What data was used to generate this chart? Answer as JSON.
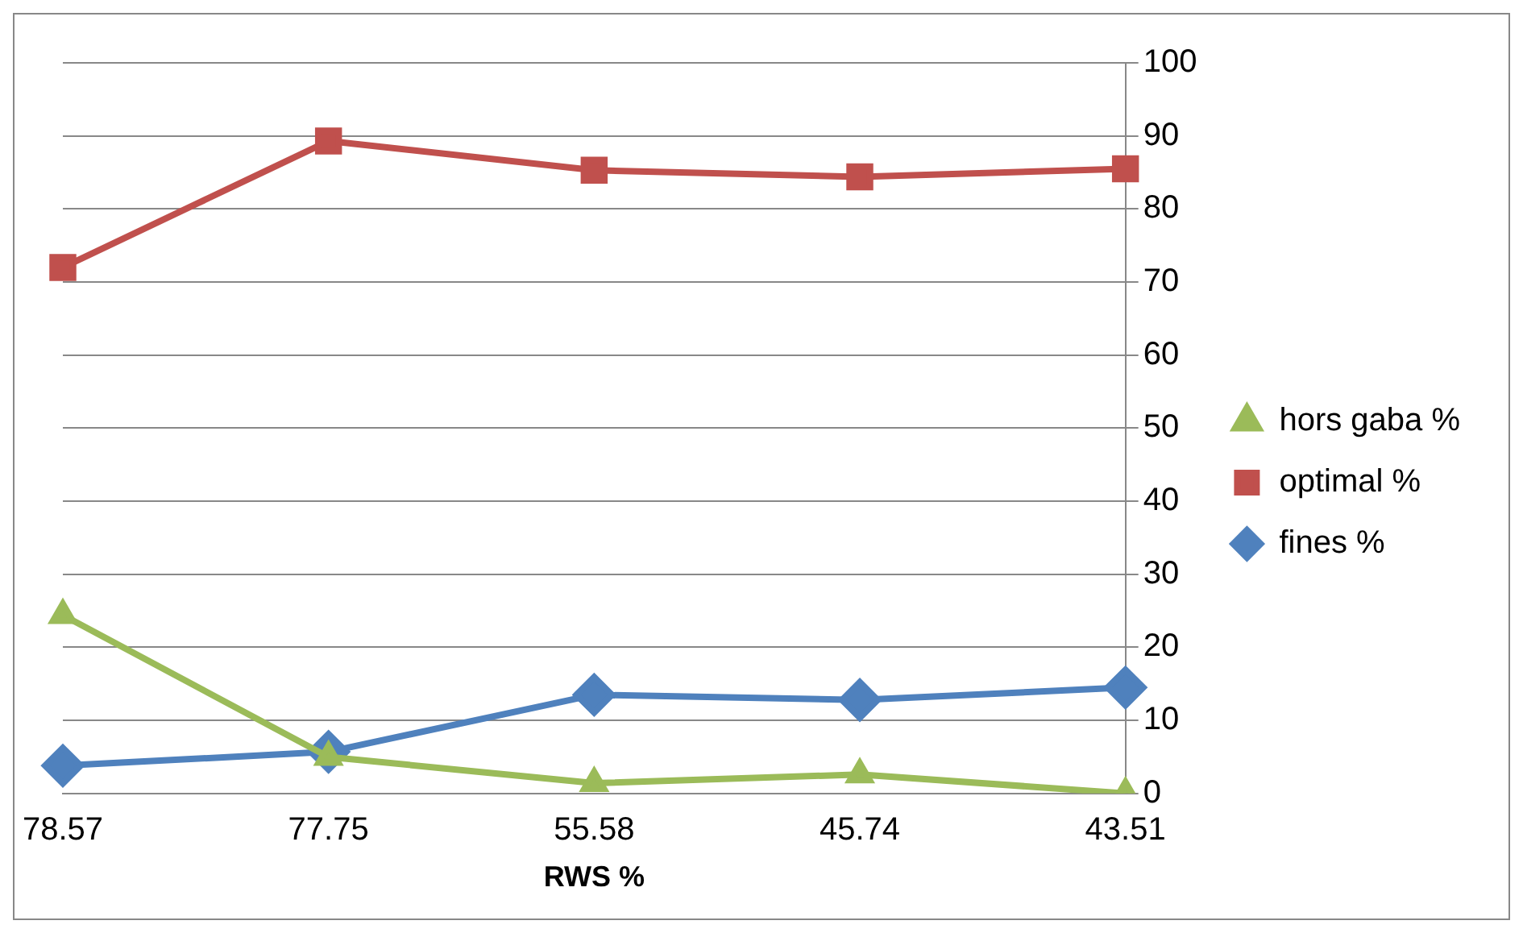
{
  "chart_data": {
    "type": "line",
    "xlabel": "RWS %",
    "categories": [
      "78.57",
      "77.75",
      "55.58",
      "45.74",
      "43.51"
    ],
    "series": [
      {
        "name": "hors gaba %",
        "color": "#9bbb59",
        "marker": "triangle",
        "values": [
          24.4,
          5.0,
          1.4,
          2.6,
          0
        ]
      },
      {
        "name": "optimal %",
        "color": "#c0504d",
        "marker": "square",
        "values": [
          72.0,
          89.3,
          85.3,
          84.4,
          85.5
        ]
      },
      {
        "name": "fines %",
        "color": "#4f81bd",
        "marker": "diamond",
        "values": [
          3.8,
          5.7,
          13.5,
          12.8,
          14.5
        ]
      }
    ],
    "ylim": [
      0,
      100
    ],
    "yticks": [
      0,
      10,
      20,
      30,
      40,
      50,
      60,
      70,
      80,
      90,
      100
    ],
    "grid": "y",
    "legend": "right"
  }
}
